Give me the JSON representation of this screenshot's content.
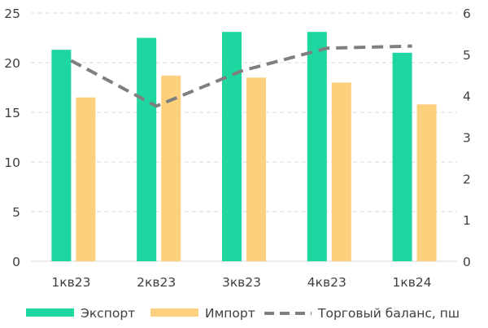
{
  "chart_data": {
    "type": "bar",
    "title": "",
    "categories": [
      "1кв23",
      "2кв23",
      "3кв23",
      "4кв23",
      "1кв24"
    ],
    "series": [
      {
        "name": "Экспорт",
        "type": "bar",
        "axis": "left",
        "color": "#1ed6a0",
        "values": [
          21.3,
          22.5,
          23.1,
          23.1,
          21.0
        ]
      },
      {
        "name": "Импорт",
        "type": "bar",
        "axis": "left",
        "color": "#fdd07e",
        "values": [
          16.5,
          18.7,
          18.5,
          18.0,
          15.8
        ]
      },
      {
        "name": "Торговый баланс, пш",
        "type": "line",
        "line_style": "dashed",
        "axis": "right",
        "color": "#7f7f7f",
        "values": [
          4.85,
          3.75,
          4.6,
          5.15,
          5.2
        ]
      }
    ],
    "y_left": {
      "min": 0,
      "max": 25,
      "ticks": [
        "0",
        "5",
        "10",
        "15",
        "20",
        "25"
      ]
    },
    "y_right": {
      "min": 0,
      "max": 6,
      "ticks": [
        "0",
        "1",
        "2",
        "3",
        "4",
        "5",
        "6"
      ]
    },
    "grid": "horizontal dashed",
    "legend_position": "bottom"
  }
}
